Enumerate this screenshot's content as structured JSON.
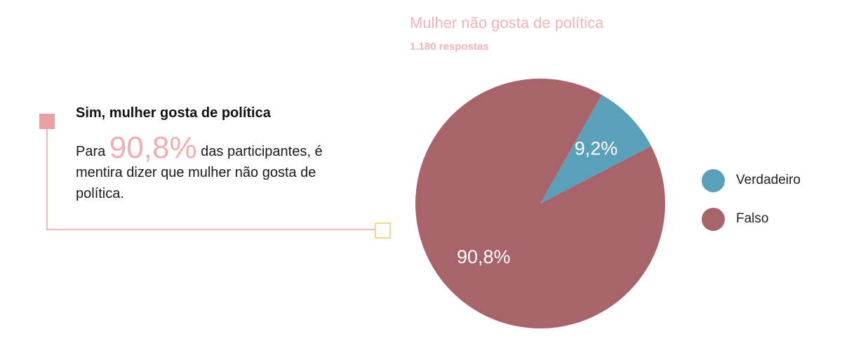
{
  "callout": {
    "title": "Sim, mulher gosta de política",
    "prefix": "Para ",
    "highlight": "90,8%",
    "text_after_highlight": " das",
    "text_rest": "participantes, é mentira dizer que mulher não gosta de política."
  },
  "chart_data": {
    "type": "pie",
    "title": "Mulher não gosta de política",
    "subtitle": "1.180 respostas",
    "slices": [
      {
        "label": "Verdadeiro",
        "value": 9.2,
        "display": "9,2%",
        "color": "#5aa0b9"
      },
      {
        "label": "Falso",
        "value": 90.8,
        "display": "90,8%",
        "color": "#a9636a"
      }
    ],
    "legend_position": "right",
    "label_color": "#ffffff"
  }
}
